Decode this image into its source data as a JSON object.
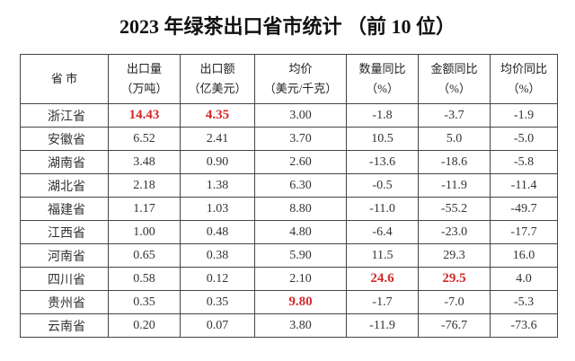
{
  "title": "2023 年绿茶出口省市统计 （前 10 位）",
  "table": {
    "header": [
      [
        "省 市"
      ],
      [
        "出口量",
        "（万吨）"
      ],
      [
        "出口额",
        "（亿美元）"
      ],
      [
        "均价",
        "（美元/千克）"
      ],
      [
        "数量同比",
        "（%）"
      ],
      [
        "金额同比",
        "（%）"
      ],
      [
        "均价同比",
        "（%）"
      ]
    ],
    "rows": [
      [
        "浙江省",
        "14.43",
        "4.35",
        "3.00",
        "-1.8",
        "-3.7",
        "-1.9"
      ],
      [
        "安徽省",
        "6.52",
        "2.41",
        "3.70",
        "10.5",
        "5.0",
        "-5.0"
      ],
      [
        "湖南省",
        "3.48",
        "0.90",
        "2.60",
        "-13.6",
        "-18.6",
        "-5.8"
      ],
      [
        "湖北省",
        "2.18",
        "1.38",
        "6.30",
        "-0.5",
        "-11.9",
        "-11.4"
      ],
      [
        "福建省",
        "1.17",
        "1.03",
        "8.80",
        "-11.0",
        "-55.2",
        "-49.7"
      ],
      [
        "江西省",
        "1.00",
        "0.48",
        "4.80",
        "-6.4",
        "-23.0",
        "-17.7"
      ],
      [
        "河南省",
        "0.65",
        "0.38",
        "5.90",
        "11.5",
        "29.3",
        "16.0"
      ],
      [
        "四川省",
        "0.58",
        "0.12",
        "2.10",
        "24.6",
        "29.5",
        "4.0"
      ],
      [
        "贵州省",
        "0.35",
        "0.35",
        "9.80",
        "-1.7",
        "-7.0",
        "-5.3"
      ],
      [
        "云南省",
        "0.20",
        "0.07",
        "3.80",
        "-11.9",
        "-76.7",
        "-73.6"
      ]
    ],
    "highlight_color": "#d42a2a",
    "highlighted": [
      [
        0,
        1
      ],
      [
        0,
        2
      ],
      [
        7,
        4
      ],
      [
        7,
        5
      ],
      [
        8,
        3
      ]
    ]
  }
}
